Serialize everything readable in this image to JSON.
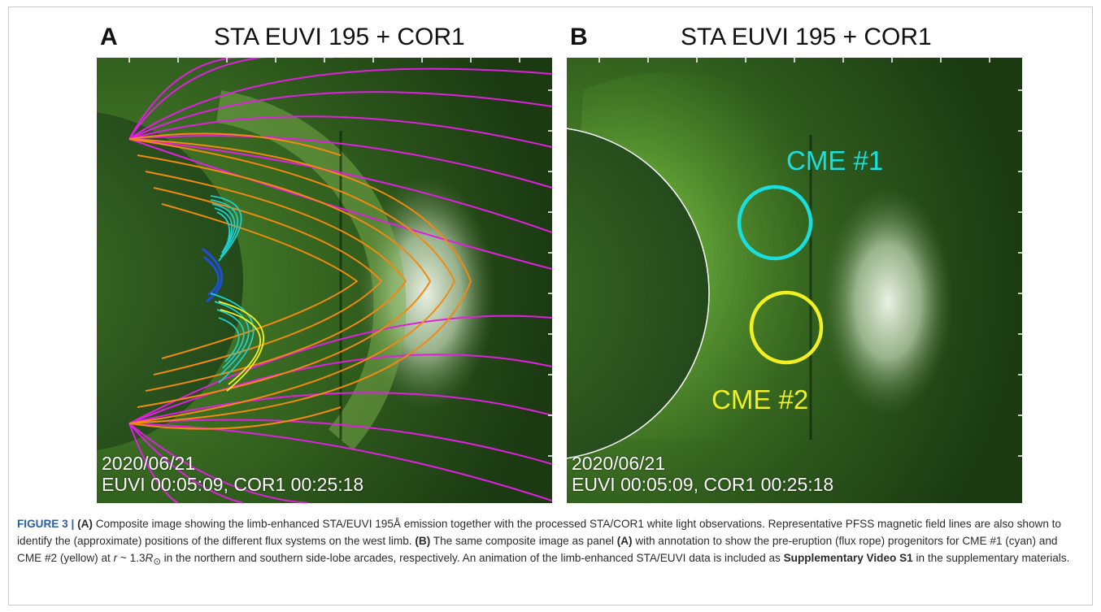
{
  "figure": {
    "panel_a": {
      "letter": "A",
      "title": "STA EUVI 195 + COR1",
      "date": "2020/06/21",
      "times": "EUVI 00:05:09, COR1 00:25:18"
    },
    "panel_b": {
      "letter": "B",
      "title": "STA EUVI 195 + COR1",
      "date": "2020/06/21",
      "times": "EUVI 00:05:09, COR1 00:25:18",
      "cme1_label": "CME #1",
      "cme2_label": "CME #2"
    },
    "colors": {
      "cme1": "#19e0e0",
      "cme2": "#f2f020",
      "open_field": "#e020e0",
      "closed_field": "#f08a10",
      "arcade": "#1ecfd0",
      "core": "#1d4fd8"
    }
  },
  "caption": {
    "figure_label": "FIGURE 3 | ",
    "a_label": "(A)",
    "a_text": " Composite image showing the limb-enhanced STA/EUVI 195Å emission together with the processed STA/COR1 white light observations. Representative PFSS magnetic field lines are also shown to identify the (approximate) positions of the different flux systems on the west limb. ",
    "b_label": "(B)",
    "b_text_1": " The same composite image as panel ",
    "b_ref": "(A)",
    "b_text_2": " with annotation to show the pre-eruption (flux rope) progenitors for CME #1 (cyan) and CME #2 (yellow) at ",
    "r_sym": "r",
    "r_text": " ~ 1.3",
    "r_unit": "R",
    "sun_sub": "⊙",
    "b_text_3": " in the northern and southern side-lobe arcades, respectively. An animation of the limb-enhanced STA/EUVI data is included as ",
    "video_label": "Supplementary Video S1",
    "b_text_4": " in the supplementary materials."
  }
}
